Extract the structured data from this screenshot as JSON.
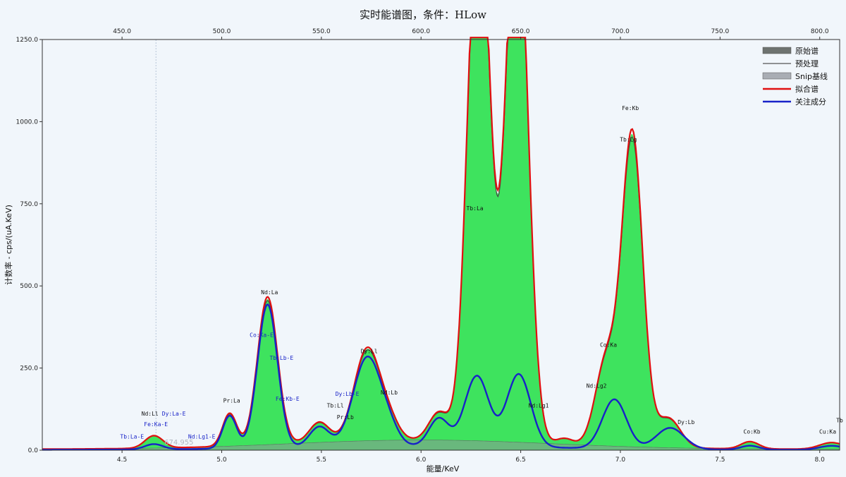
{
  "chart_data": {
    "type": "area",
    "title": "实时能谱图，条件：HLow",
    "xlabel": "能量/KeV",
    "ylabel": "计数率 - cps/(uA.KeV)",
    "xlim": [
      4.1,
      8.1
    ],
    "ylim": [
      0,
      1250
    ],
    "bottom_ticks": [
      4.5,
      5.0,
      5.5,
      6.0,
      6.5,
      7.0,
      7.5,
      8.0
    ],
    "bottom_tick_labels": [
      "4.5",
      "5.0",
      "5.5",
      "6.0",
      "6.5",
      "7.0",
      "7.5",
      "8.0"
    ],
    "top_ticks": [
      450,
      500,
      550,
      600,
      650,
      700,
      750,
      800
    ],
    "top_tick_labels": [
      "450.0",
      "500.0",
      "550.0",
      "600.0",
      "650.0",
      "700.0",
      "750.0",
      "800.0"
    ],
    "y_ticks": [
      0,
      250,
      500,
      750,
      1000,
      1250
    ],
    "y_tick_labels": [
      "0.0",
      "250.0",
      "500.0",
      "750.0",
      "1000.0",
      "1250.0"
    ],
    "legend_position": "top-right",
    "series": [
      {
        "name": "原始谱",
        "style": "filled",
        "color": "#3ee35e"
      },
      {
        "name": "预处理",
        "style": "line",
        "color": "#555555"
      },
      {
        "name": "Snip基线",
        "style": "filled",
        "color": "#a9adb4"
      },
      {
        "name": "拟合谱",
        "style": "line",
        "color": "#e01010"
      },
      {
        "name": "关注成分",
        "style": "line",
        "color": "#1822c8"
      }
    ],
    "fit_peaks": [
      {
        "x": 4.66,
        "height": 38,
        "sigma": 0.045
      },
      {
        "x": 5.04,
        "height": 100,
        "sigma": 0.035
      },
      {
        "x": 5.23,
        "height": 450,
        "sigma": 0.05
      },
      {
        "x": 5.49,
        "height": 62,
        "sigma": 0.05
      },
      {
        "x": 5.73,
        "height": 280,
        "sigma": 0.065
      },
      {
        "x": 5.84,
        "height": 50,
        "sigma": 0.05
      },
      {
        "x": 6.09,
        "height": 85,
        "sigma": 0.05
      },
      {
        "x": 6.29,
        "height": 1700,
        "sigma": 0.055
      },
      {
        "x": 6.48,
        "height": 1700,
        "sigma": 0.055
      },
      {
        "x": 6.72,
        "height": 18,
        "sigma": 0.04
      },
      {
        "x": 6.93,
        "height": 260,
        "sigma": 0.055
      },
      {
        "x": 7.06,
        "height": 950,
        "sigma": 0.052
      },
      {
        "x": 7.24,
        "height": 90,
        "sigma": 0.06
      },
      {
        "x": 7.65,
        "height": 22,
        "sigma": 0.045
      },
      {
        "x": 8.06,
        "height": 20,
        "sigma": 0.06
      }
    ],
    "component_peaks": [
      {
        "x": 4.66,
        "height": 16,
        "sigma": 0.045
      },
      {
        "x": 5.04,
        "height": 100,
        "sigma": 0.035
      },
      {
        "x": 5.23,
        "height": 437,
        "sigma": 0.05
      },
      {
        "x": 5.49,
        "height": 62,
        "sigma": 0.05
      },
      {
        "x": 5.73,
        "height": 270,
        "sigma": 0.07
      },
      {
        "x": 5.84,
        "height": 40,
        "sigma": 0.05
      },
      {
        "x": 6.09,
        "height": 85,
        "sigma": 0.05
      },
      {
        "x": 6.28,
        "height": 215,
        "sigma": 0.06
      },
      {
        "x": 6.49,
        "height": 222,
        "sigma": 0.06
      },
      {
        "x": 6.97,
        "height": 150,
        "sigma": 0.06
      },
      {
        "x": 7.25,
        "height": 65,
        "sigma": 0.07
      },
      {
        "x": 7.65,
        "height": 12,
        "sigma": 0.045
      },
      {
        "x": 8.06,
        "height": 12,
        "sigma": 0.06
      }
    ],
    "baseline": {
      "center": 6.0,
      "height": 28,
      "sigma": 0.65
    },
    "annotations": [
      {
        "text": "Tb:La-E",
        "x": 4.55,
        "y": 35,
        "color": "#1822c8"
      },
      {
        "text": "Nd:Ll",
        "x": 4.64,
        "y": 105,
        "color": "#111111"
      },
      {
        "text": "Dy:La-E",
        "x": 4.76,
        "y": 105,
        "color": "#1822c8"
      },
      {
        "text": "Fe:Ka-E",
        "x": 4.67,
        "y": 73,
        "color": "#1822c8"
      },
      {
        "text": "Nd:Lg1-E",
        "x": 4.9,
        "y": 35,
        "color": "#1822c8"
      },
      {
        "text": "Pr:La",
        "x": 5.05,
        "y": 145,
        "color": "#111111"
      },
      {
        "text": "Nd:La",
        "x": 5.24,
        "y": 475,
        "color": "#111111"
      },
      {
        "text": "Co:Ka-E",
        "x": 5.2,
        "y": 345,
        "color": "#1822c8"
      },
      {
        "text": "Tb:Lb-E",
        "x": 5.3,
        "y": 275,
        "color": "#1822c8"
      },
      {
        "text": "Fe:Kb-E",
        "x": 5.33,
        "y": 150,
        "color": "#1822c8"
      },
      {
        "text": "Dy:Lb-E",
        "x": 5.63,
        "y": 165,
        "color": "#1822c8"
      },
      {
        "text": "Tb:Ll",
        "x": 5.57,
        "y": 130,
        "color": "#111111"
      },
      {
        "text": "Pr:Lb",
        "x": 5.62,
        "y": 95,
        "color": "#111111"
      },
      {
        "text": "Dy:Ll",
        "x": 5.74,
        "y": 295,
        "color": "#111111"
      },
      {
        "text": "Nd:Lb",
        "x": 5.84,
        "y": 170,
        "color": "#111111"
      },
      {
        "text": "Tb:La",
        "x": 6.27,
        "y": 730,
        "color": "#111111"
      },
      {
        "text": "Nd:Lg1",
        "x": 6.59,
        "y": 130,
        "color": "#111111"
      },
      {
        "text": "Nd:Lg2",
        "x": 6.88,
        "y": 190,
        "color": "#111111"
      },
      {
        "text": "Co:Ka",
        "x": 6.94,
        "y": 315,
        "color": "#111111"
      },
      {
        "text": "Fe:Kb",
        "x": 7.05,
        "y": 1035,
        "color": "#111111"
      },
      {
        "text": "Tb:Lg",
        "x": 7.04,
        "y": 940,
        "color": "#111111"
      },
      {
        "text": "Dy:Lb",
        "x": 7.33,
        "y": 80,
        "color": "#111111"
      },
      {
        "text": "Co:Kb",
        "x": 7.66,
        "y": 50,
        "color": "#111111"
      },
      {
        "text": "Cu:Ka",
        "x": 8.04,
        "y": 50,
        "color": "#111111"
      },
      {
        "text": "Tb",
        "x": 8.1,
        "y": 85,
        "color": "#111111"
      }
    ],
    "cursor": {
      "x": 4.67,
      "readout": "674.955"
    }
  }
}
